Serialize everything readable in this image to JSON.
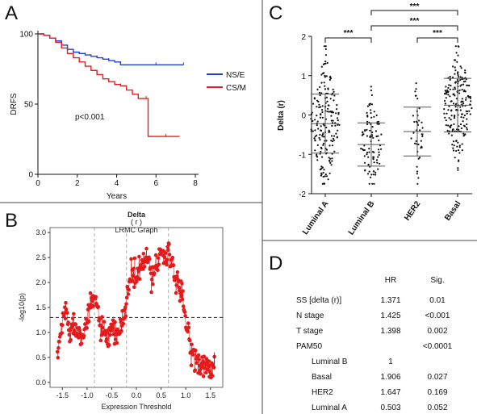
{
  "panels": {
    "A": {
      "letter": "A"
    },
    "B": {
      "letter": "B"
    },
    "C": {
      "letter": "C"
    },
    "D": {
      "letter": "D"
    }
  },
  "chart_data": [
    {
      "panel": "A",
      "type": "line",
      "xlabel": "Years",
      "ylabel": "DRFS",
      "xlim": [
        0,
        8
      ],
      "ylim": [
        0,
        100
      ],
      "xticks": [
        "0",
        "2",
        "4",
        "6",
        "8"
      ],
      "yticks": [
        "0",
        "50",
        "100"
      ],
      "annotation": "p<0.001",
      "legend_position": "right",
      "series": [
        {
          "name": "NS/E",
          "color": "#1f3fd6",
          "x": [
            0,
            0.3,
            0.6,
            0.9,
            1.2,
            1.5,
            1.8,
            2.1,
            2.4,
            2.7,
            3.0,
            3.3,
            3.6,
            3.9,
            4.2,
            5.0,
            6.0,
            7.0,
            7.4
          ],
          "y": [
            100,
            99,
            97,
            95,
            92,
            89,
            87,
            86,
            85,
            84,
            83,
            82,
            81,
            80,
            78,
            78,
            78,
            78,
            78
          ]
        },
        {
          "name": "CS/M",
          "color": "#e02020",
          "x": [
            0,
            0.3,
            0.6,
            0.9,
            1.2,
            1.5,
            1.8,
            2.1,
            2.4,
            2.7,
            3.0,
            3.3,
            3.6,
            3.9,
            4.2,
            4.5,
            4.8,
            5.1,
            5.5,
            5.6,
            6.5,
            7.2
          ],
          "y": [
            100,
            99,
            97,
            94,
            90,
            86,
            83,
            80,
            77,
            74,
            71,
            68,
            66,
            64,
            63,
            60,
            57,
            54,
            54,
            27,
            27,
            27
          ]
        }
      ]
    },
    {
      "panel": "B",
      "type": "scatter",
      "title": "Delta",
      "subtitle": "( r )",
      "subtitle2": "LRMC Graph",
      "xlabel": "Expression Threshold",
      "ylabel": "-log10(p)",
      "xlim": [
        -1.75,
        1.75
      ],
      "ylim": [
        -0.1,
        3.1
      ],
      "xticks": [
        "-1.5",
        "-1.0",
        "-0.5",
        "0.0",
        "0.5",
        "1.0",
        "1.5"
      ],
      "yticks": [
        "0.0",
        "0.5",
        "1.0",
        "1.5",
        "2.0",
        "2.5",
        "3.0"
      ],
      "hline": 1.3,
      "vlines": [
        -0.85,
        -0.2,
        0.65
      ],
      "color": "#e41a1c",
      "anchors_x": [
        -1.6,
        -1.55,
        -1.5,
        -1.45,
        -1.4,
        -1.35,
        -1.3,
        -1.2,
        -1.1,
        -1.0,
        -0.95,
        -0.9,
        -0.85,
        -0.8,
        -0.75,
        -0.7,
        -0.6,
        -0.5,
        -0.4,
        -0.3,
        -0.25,
        -0.2,
        -0.15,
        -0.1,
        0.0,
        0.1,
        0.2,
        0.3,
        0.4,
        0.5,
        0.6,
        0.65,
        0.7,
        0.75,
        0.8,
        0.85,
        0.9,
        0.95,
        1.0,
        1.05,
        1.1,
        1.15,
        1.2,
        1.3,
        1.4,
        1.5,
        1.58
      ],
      "anchors_y": [
        0.5,
        0.9,
        1.2,
        1.45,
        1.35,
        1.0,
        1.15,
        1.05,
        1.0,
        1.2,
        1.4,
        1.6,
        1.7,
        1.55,
        1.3,
        1.0,
        0.85,
        1.0,
        0.95,
        1.1,
        1.35,
        1.6,
        2.0,
        2.15,
        2.1,
        2.3,
        2.5,
        2.15,
        2.35,
        2.65,
        2.45,
        2.8,
        2.45,
        2.2,
        2.0,
        1.9,
        1.75,
        1.6,
        1.2,
        1.0,
        0.7,
        0.55,
        0.5,
        0.4,
        0.3,
        0.25,
        0.3
      ],
      "jitter": 0.12,
      "n_points": 320
    },
    {
      "panel": "C",
      "type": "scatter",
      "ylabel": "Delta (r)",
      "ylim": [
        -2,
        2
      ],
      "yticks": [
        "-2",
        "-1",
        "0",
        "1",
        "2"
      ],
      "categories": [
        "Luminal A",
        "Luminal B",
        "HER2",
        "Basal"
      ],
      "means": [
        -0.22,
        -0.75,
        -0.42,
        0.25
      ],
      "sd": [
        0.75,
        0.55,
        0.62,
        0.68
      ],
      "n": [
        190,
        95,
        40,
        200
      ],
      "spread_points": [
        0.9,
        0.7,
        0.4,
        0.9
      ],
      "significance": [
        {
          "a": "Luminal A",
          "b": "Luminal B",
          "label": "***"
        },
        {
          "a": "Luminal B",
          "b": "Basal",
          "label": "***"
        },
        {
          "a": "Luminal B",
          "b": "Basal",
          "label": "***"
        },
        {
          "a": "HER2",
          "b": "Basal",
          "label": "***"
        }
      ]
    },
    {
      "panel": "D",
      "type": "table",
      "headers": [
        "HR",
        "Sig."
      ],
      "rows": [
        {
          "label": "SS [delta (r)]",
          "hr": "1.371",
          "sig": "0.01",
          "indent": false
        },
        {
          "label": "N stage",
          "hr": "1.425",
          "sig": "<0.001",
          "indent": false
        },
        {
          "label": "T stage",
          "hr": "1.398",
          "sig": "0.002",
          "indent": false
        },
        {
          "label": "PAM50",
          "hr": "",
          "sig": "<0.0001",
          "indent": false
        },
        {
          "label": "Luminal B",
          "hr": "1",
          "sig": "",
          "indent": true
        },
        {
          "label": "Basal",
          "hr": "1.906",
          "sig": "0.027",
          "indent": true
        },
        {
          "label": "HER2",
          "hr": "1.647",
          "sig": "0.169",
          "indent": true
        },
        {
          "label": "Luminal A",
          "hr": "0.503",
          "sig": "0.052",
          "indent": true
        }
      ]
    }
  ]
}
